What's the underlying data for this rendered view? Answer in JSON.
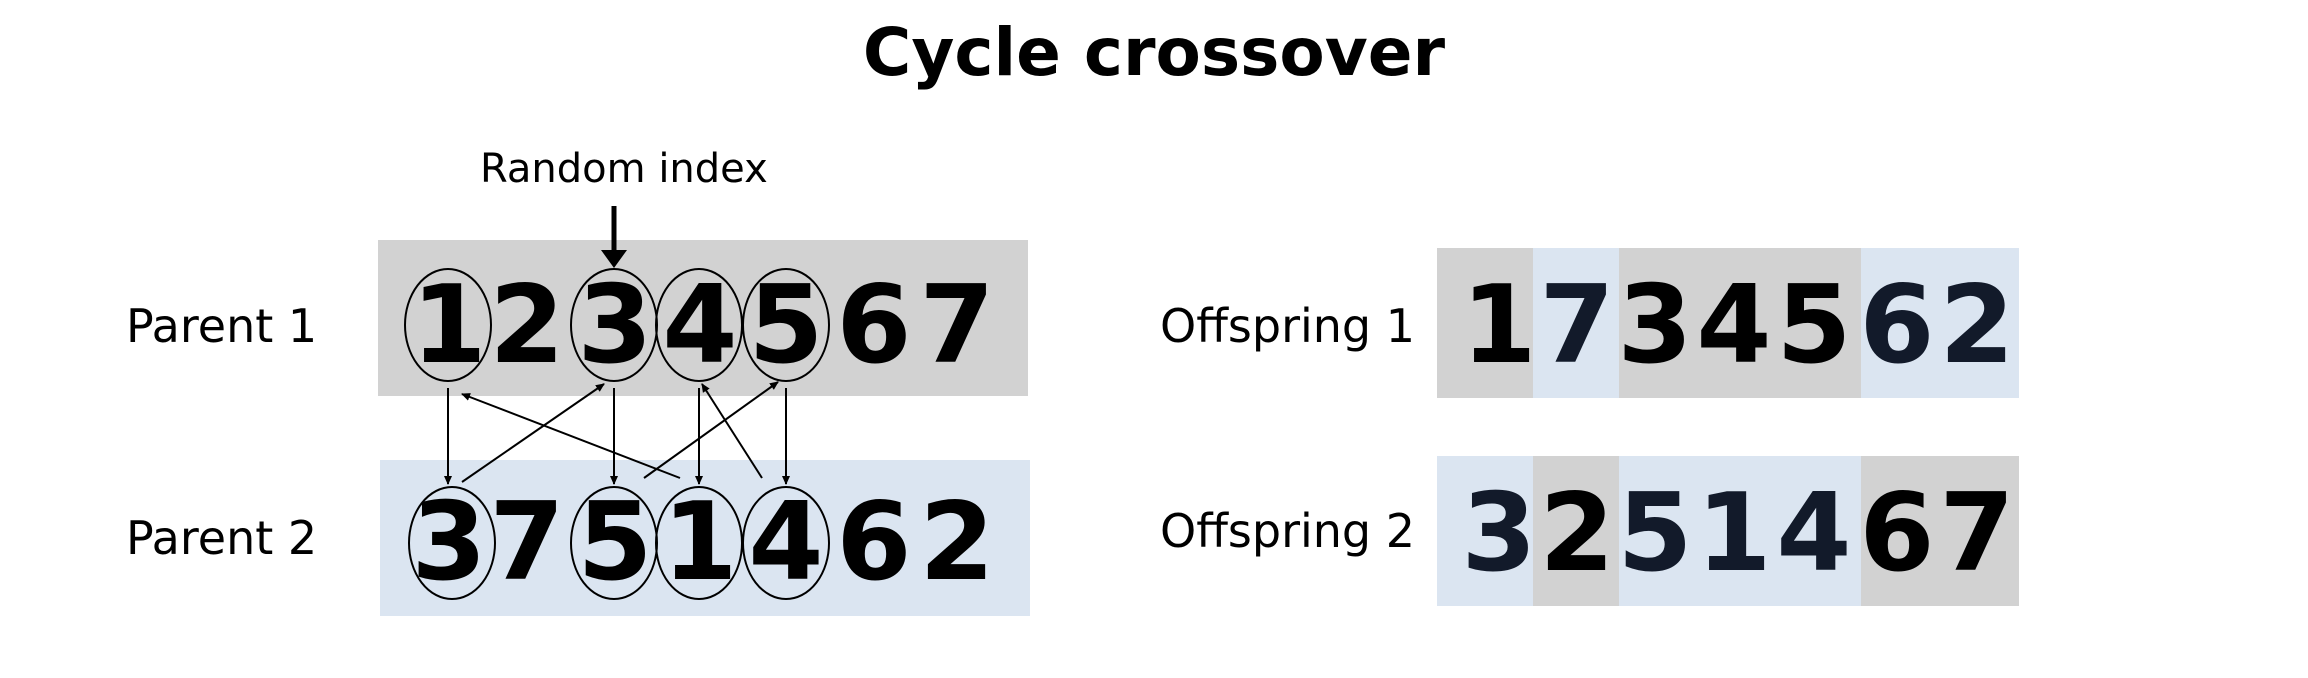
{
  "title": "Cycle crossover",
  "random_index_label": "Random index",
  "parent1": {
    "label": "Parent 1",
    "genes": [
      "1",
      "2",
      "3",
      "4",
      "5",
      "6",
      "7"
    ]
  },
  "parent2": {
    "label": "Parent 2",
    "genes": [
      "3",
      "7",
      "5",
      "1",
      "4",
      "6",
      "2"
    ]
  },
  "offspring1": {
    "label": "Offspring 1",
    "genes": [
      "1",
      "7",
      "3",
      "4",
      "5",
      "6",
      "2"
    ],
    "sources": [
      "p1",
      "p2",
      "p1",
      "p1",
      "p1",
      "p2",
      "p2"
    ]
  },
  "offspring2": {
    "label": "Offspring 2",
    "genes": [
      "3",
      "2",
      "5",
      "1",
      "4",
      "6",
      "7"
    ],
    "sources": [
      "p2",
      "p1",
      "p2",
      "p2",
      "p2",
      "p1",
      "p1"
    ]
  },
  "colors": {
    "parent1_bg": "#d2d2d2",
    "parent2_bg": "#dbe5f1",
    "p1_text": "#000000",
    "p2_text": "#121a2a"
  }
}
